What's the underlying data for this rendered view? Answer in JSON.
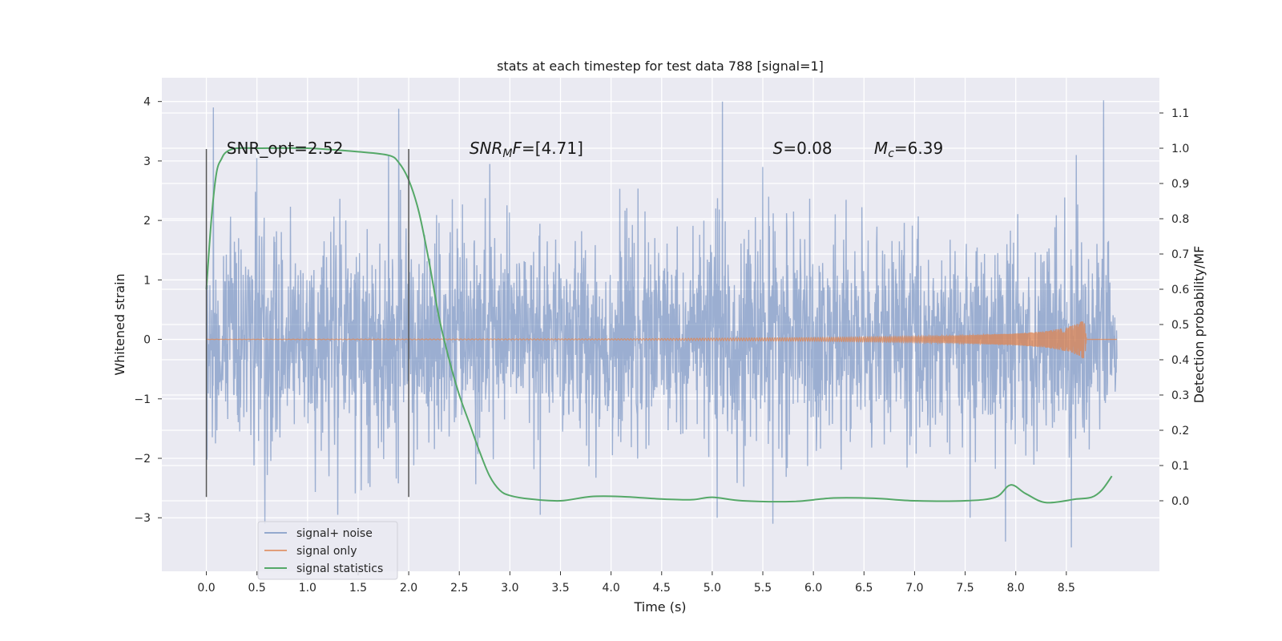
{
  "chart_data": {
    "type": "line",
    "title": "stats at each timestep for test data 788 [signal=1]",
    "xlabel": "Time (s)",
    "ylabel": "Whitened strain",
    "ylabel_right": "Detection probability/MF",
    "xlim": [
      -0.44,
      9.42
    ],
    "ylim": [
      -3.9,
      4.4
    ],
    "ylim_right": [
      -0.2,
      1.2
    ],
    "x_ticks": [
      0.0,
      0.5,
      1.0,
      1.5,
      2.0,
      2.5,
      3.0,
      3.5,
      4.0,
      4.5,
      5.0,
      5.5,
      6.0,
      6.5,
      7.0,
      7.5,
      8.0,
      8.5
    ],
    "x_tick_labels": [
      "0.0",
      "0.5",
      "1.0",
      "1.5",
      "2.0",
      "2.5",
      "3.0",
      "3.5",
      "4.0",
      "4.5",
      "5.0",
      "5.5",
      "6.0",
      "6.5",
      "7.0",
      "7.5",
      "8.0",
      "8.5"
    ],
    "y_ticks": [
      -3,
      -2,
      -1,
      0,
      1,
      2,
      3,
      4
    ],
    "y_tick_labels": [
      "−3",
      "−2",
      "−1",
      "0",
      "1",
      "2",
      "3",
      "4"
    ],
    "y_right_ticks": [
      0.0,
      0.1,
      0.2,
      0.3,
      0.4,
      0.5,
      0.6,
      0.7,
      0.8,
      0.9,
      1.0,
      1.1
    ],
    "y_right_tick_labels": [
      "0.0",
      "0.1",
      "0.2",
      "0.3",
      "0.4",
      "0.5",
      "0.6",
      "0.7",
      "0.8",
      "0.9",
      "1.0",
      "1.1"
    ],
    "grid": true,
    "legend_position": "bottom-left",
    "series": [
      {
        "name": "signal+ noise",
        "color": "#4c72b0",
        "axis": "left",
        "style": "noise",
        "x_range": [
          0.0,
          9.0
        ],
        "spread_std": 0.85,
        "peaks": [
          [
            0.07,
            3.9
          ],
          [
            1.9,
            3.88
          ],
          [
            5.1,
            4.0
          ],
          [
            8.87,
            4.02
          ],
          [
            8.6,
            3.1
          ],
          [
            5.5,
            2.9
          ],
          [
            1.8,
            3.1
          ],
          [
            0.5,
            3.05
          ],
          [
            2.8,
            2.95
          ],
          [
            3.3,
            -2.95
          ],
          [
            0.58,
            -3.1
          ],
          [
            7.9,
            -3.4
          ],
          [
            8.55,
            -3.5
          ],
          [
            5.6,
            -3.1
          ],
          [
            5.05,
            -3.0
          ],
          [
            1.3,
            -2.95
          ],
          [
            7.55,
            -3.0
          ]
        ]
      },
      {
        "name": "signal only",
        "color": "#dd8452",
        "axis": "left",
        "style": "chirp",
        "x": [
          0.0,
          4.0,
          6.0,
          7.0,
          7.5,
          8.0,
          8.3,
          8.5,
          8.62,
          8.68,
          8.7,
          9.0
        ],
        "amplitude": [
          0.002,
          0.01,
          0.03,
          0.05,
          0.07,
          0.1,
          0.14,
          0.2,
          0.27,
          0.35,
          0.0,
          0.0
        ]
      },
      {
        "name": "signal statistics",
        "color": "#55a868",
        "axis": "right",
        "style": "line",
        "x": [
          0.0,
          0.05,
          0.1,
          0.15,
          0.2,
          0.3,
          0.5,
          1.0,
          1.5,
          1.8,
          1.9,
          2.0,
          2.1,
          2.2,
          2.3,
          2.4,
          2.5,
          2.6,
          2.7,
          2.8,
          2.9,
          3.0,
          3.2,
          3.5,
          3.8,
          4.1,
          4.5,
          4.8,
          5.0,
          5.3,
          5.8,
          6.2,
          6.6,
          7.0,
          7.5,
          7.8,
          7.95,
          8.1,
          8.3,
          8.6,
          8.75,
          8.85,
          8.95
        ],
        "y": [
          0.6,
          0.8,
          0.93,
          0.97,
          0.99,
          1.0,
          1.0,
          1.0,
          0.99,
          0.98,
          0.96,
          0.91,
          0.82,
          0.68,
          0.52,
          0.4,
          0.3,
          0.22,
          0.14,
          0.07,
          0.03,
          0.015,
          0.005,
          0.0,
          0.012,
          0.012,
          0.005,
          0.003,
          0.01,
          0.0,
          -0.002,
          0.008,
          0.007,
          0.0,
          0.0,
          0.01,
          0.045,
          0.02,
          -0.005,
          0.005,
          0.01,
          0.03,
          0.07
        ]
      }
    ],
    "vertical_markers": [
      {
        "x": 0.0,
        "y_range": [
          -2.65,
          3.2
        ]
      },
      {
        "x": 2.0,
        "y_range": [
          -2.65,
          3.2
        ]
      }
    ],
    "annotations": [
      {
        "key": "snr_opt",
        "text": "SNR_opt=2.52",
        "x": 0.2,
        "y": 3.2
      },
      {
        "key": "snr_mf",
        "text": "SNR_MF=[4.71]",
        "x": 2.6,
        "y": 3.2
      },
      {
        "key": "s",
        "text": "S=0.08",
        "x": 5.6,
        "y": 3.2
      },
      {
        "key": "mc",
        "text": "M_c=6.39",
        "x": 6.6,
        "y": 3.2
      }
    ]
  }
}
